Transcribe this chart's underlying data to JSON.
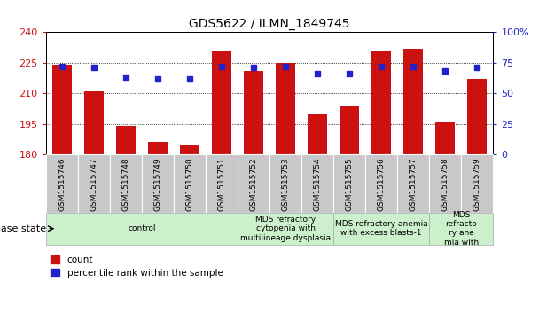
{
  "title": "GDS5622 / ILMN_1849745",
  "samples": [
    "GSM1515746",
    "GSM1515747",
    "GSM1515748",
    "GSM1515749",
    "GSM1515750",
    "GSM1515751",
    "GSM1515752",
    "GSM1515753",
    "GSM1515754",
    "GSM1515755",
    "GSM1515756",
    "GSM1515757",
    "GSM1515758",
    "GSM1515759"
  ],
  "counts": [
    224,
    211,
    194,
    186,
    185,
    231,
    221,
    225,
    200,
    204,
    231,
    232,
    196,
    217
  ],
  "percentiles": [
    72,
    71,
    63,
    62,
    62,
    72,
    71,
    72,
    66,
    66,
    72,
    72,
    68,
    71
  ],
  "y_min": 180,
  "y_max": 240,
  "y_ticks": [
    180,
    195,
    210,
    225,
    240
  ],
  "y2_ticks": [
    0,
    25,
    50,
    75,
    100
  ],
  "bar_color": "#cc1111",
  "dot_color": "#2222cc",
  "tick_bg_color": "#c8c8c8",
  "disease_groups": [
    {
      "label": "control",
      "start": 0,
      "end": 6
    },
    {
      "label": "MDS refractory\ncytopenia with\nmultilineage dysplasia",
      "start": 6,
      "end": 9
    },
    {
      "label": "MDS refractory anemia\nwith excess blasts-1",
      "start": 9,
      "end": 12
    },
    {
      "label": "MDS\nrefracto\nry ane\nmia with",
      "start": 12,
      "end": 14
    }
  ],
  "disease_group_color": "#ccf0cc",
  "disease_state_label": "disease state",
  "legend_count_label": "count",
  "legend_pct_label": "percentile rank within the sample",
  "title_fontsize": 10,
  "bar_width": 0.6
}
